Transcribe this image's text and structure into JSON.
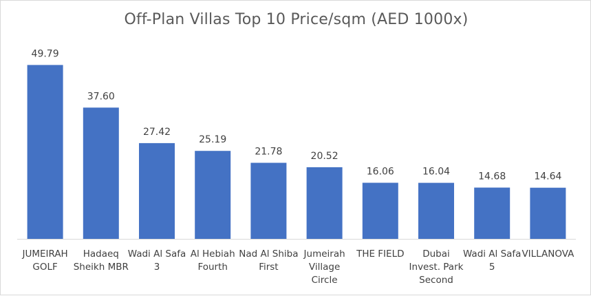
{
  "chart_data": {
    "type": "bar",
    "title": "Off-Plan Villas Top 10 Price/sqm (AED 1000x)",
    "xlabel": "",
    "ylabel": "",
    "ylim": [
      0,
      55
    ],
    "grid": false,
    "legend": "none",
    "bar_color": "#4472c4",
    "categories": [
      "JUMEIRAH GOLF",
      "Hadaeq Sheikh MBR",
      "Wadi Al Safa 3",
      "Al Hebiah Fourth",
      "Nad Al Shiba First",
      "Jumeirah Village Circle",
      "THE FIELD",
      "Dubai Invest. Park Second",
      "Wadi Al Safa 5",
      "VILLANOVA"
    ],
    "values": [
      49.79,
      37.6,
      27.42,
      25.19,
      21.78,
      20.52,
      16.06,
      16.04,
      14.68,
      14.64
    ],
    "data_labels": [
      "49.79",
      "37.60",
      "27.42",
      "25.19",
      "21.78",
      "20.52",
      "16.06",
      "16.04",
      "14.68",
      "14.64"
    ]
  }
}
